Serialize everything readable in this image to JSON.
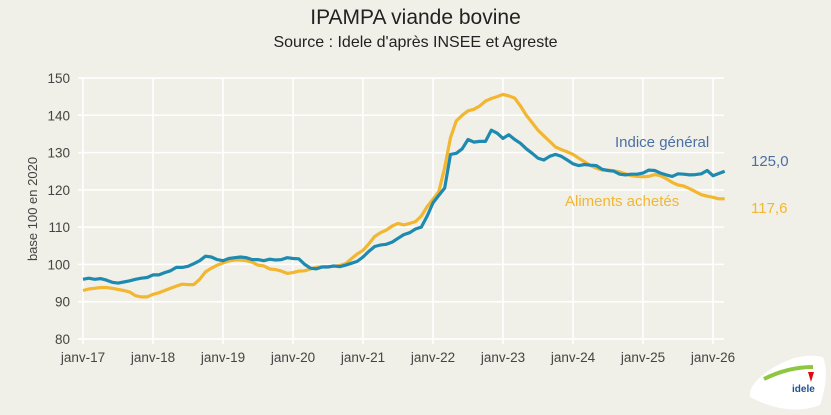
{
  "title": "IPAMPA viande bovine",
  "subtitle": "Source : Idele d'après INSEE et Agreste",
  "chart_data": {
    "type": "line",
    "title": "IPAMPA viande bovine",
    "subtitle": "Source : Idele d'après INSEE et Agreste",
    "xlabel": "",
    "ylabel": "base 100 en 2020",
    "ylim": [
      80,
      150
    ],
    "yticks": [
      80,
      90,
      100,
      110,
      120,
      130,
      140,
      150
    ],
    "xtick_labels": [
      "janv-17",
      "janv-18",
      "janv-19",
      "janv-20",
      "janv-21",
      "janv-22",
      "janv-23",
      "janv-24",
      "janv-25",
      "janv-26"
    ],
    "x_start": "2017-01",
    "x_frequency": "monthly",
    "grid": true,
    "legend": "inline labels at right",
    "series": [
      {
        "name": "Indice général",
        "color": "#1f8ab0",
        "label_color": "#4a6fa5",
        "last_value_label": "125,0",
        "values": [
          96,
          96.3,
          96,
          96.2,
          95.8,
          95.2,
          95,
          95.3,
          95.6,
          96,
          96.3,
          96.5,
          97.2,
          97.2,
          97.8,
          98.3,
          99.2,
          99.2,
          99.5,
          100.2,
          101,
          102.2,
          102,
          101.3,
          101,
          101.6,
          101.8,
          102,
          101.8,
          101.3,
          101.3,
          101,
          101.4,
          101.2,
          101.3,
          101.8,
          101.6,
          101.5,
          100,
          99,
          98.8,
          99.3,
          99.3,
          99.6,
          99.4,
          99.8,
          100.3,
          100.8,
          102,
          103.5,
          104.8,
          105.2,
          105.4,
          106,
          107,
          108,
          108.5,
          109.5,
          110,
          113,
          116.5,
          118.5,
          120.5,
          129.5,
          129.8,
          131,
          133.5,
          132.8,
          133,
          133,
          136,
          135.2,
          133.8,
          134.8,
          133.5,
          132.5,
          131,
          129.8,
          128.5,
          128,
          129,
          129.5,
          129,
          128,
          127,
          126.5,
          126.8,
          126.6,
          126.5,
          125.5,
          125.2,
          125,
          124.2,
          124,
          124.2,
          124.2,
          124.5,
          125.3,
          125.2,
          124.5,
          124,
          123.6,
          124.3,
          124.2,
          124,
          124.1,
          124.3,
          125.2,
          123.8,
          124.4,
          125.0
        ]
      },
      {
        "name": "Aliments achetés",
        "color": "#f2b631",
        "label_color": "#f2b631",
        "last_value_label": "117,6",
        "values": [
          93,
          93.4,
          93.6,
          93.8,
          93.8,
          93.6,
          93.3,
          93,
          92.6,
          91.6,
          91.3,
          91.3,
          92,
          92.4,
          93,
          93.6,
          94.2,
          94.7,
          94.6,
          94.6,
          96,
          98,
          99,
          99.8,
          100.4,
          100.9,
          101.2,
          101.2,
          101,
          100.6,
          99.8,
          99.6,
          98.8,
          98.6,
          98.2,
          97.6,
          97.8,
          98.2,
          98.3,
          98.8,
          99.2,
          99.4,
          99.4,
          99.5,
          99.7,
          100.2,
          101.5,
          102.8,
          103.8,
          105.5,
          107.5,
          108.5,
          109.2,
          110.3,
          111,
          110.6,
          111,
          111.5,
          113,
          115.5,
          117.5,
          119.5,
          126,
          134,
          138.5,
          140,
          141.2,
          141.6,
          142.5,
          143.8,
          144.5,
          145,
          145.6,
          145.2,
          144.6,
          142.5,
          140,
          138,
          136,
          134.5,
          133,
          131.5,
          130.8,
          130.2,
          129.5,
          128.5,
          127.5,
          126.5,
          125.8,
          125.3,
          125.3,
          125.1,
          124.8,
          124.3,
          123.8,
          123.6,
          123.5,
          123.6,
          124.1,
          123.8,
          123,
          122,
          121.3,
          121,
          120.3,
          119.5,
          118.7,
          118.3,
          118,
          117.6,
          117.6
        ]
      }
    ]
  },
  "logo": {
    "text": "idele",
    "colors": [
      "#8dc63f",
      "#e30613",
      "#1d4f91"
    ]
  }
}
